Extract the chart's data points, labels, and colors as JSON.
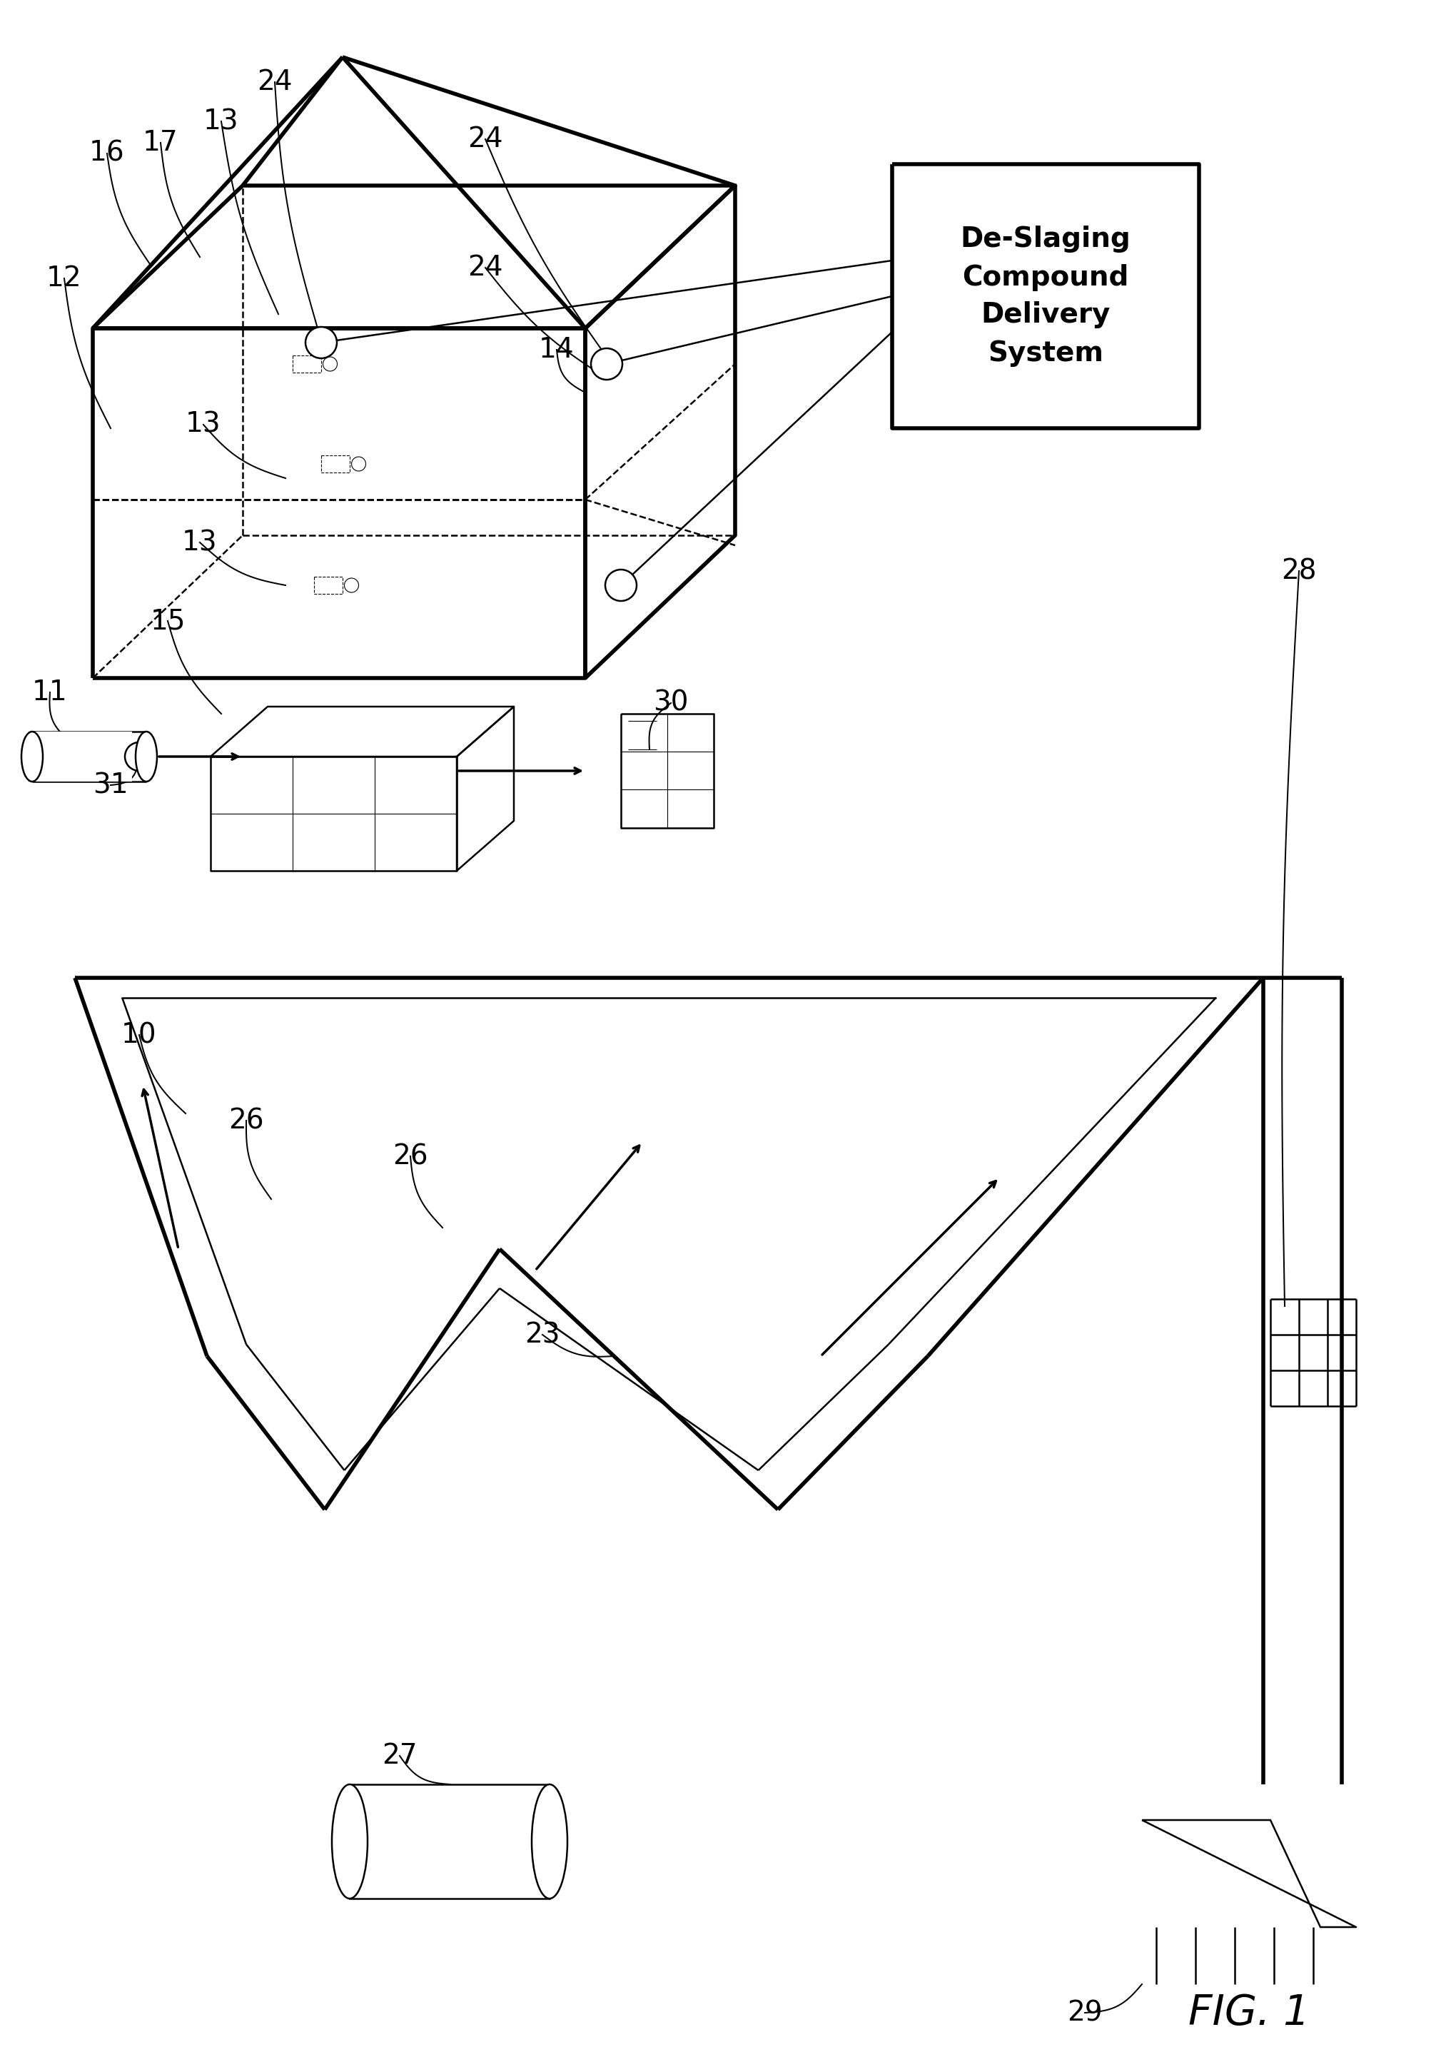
{
  "bg_color": "#ffffff",
  "line_color": "#000000",
  "thick_lw": 4.0,
  "thin_lw": 1.8,
  "med_lw": 2.5,
  "fig_label": "FIG. 1",
  "box_label_lines": [
    "De-Slaging",
    "Compound",
    "Delivery",
    "System"
  ]
}
